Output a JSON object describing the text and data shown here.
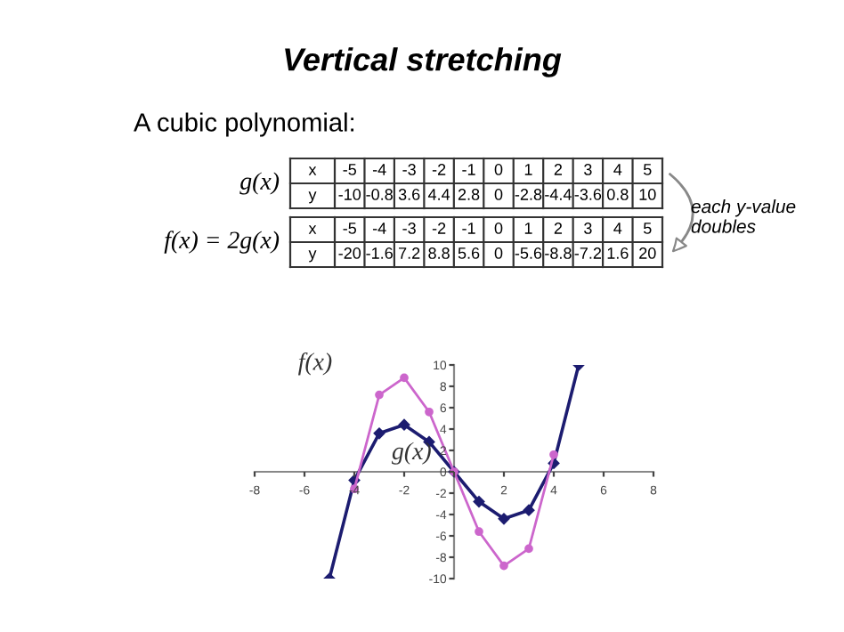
{
  "chart_data": {
    "type": "line",
    "title": "Vertical stretching",
    "subtitle": "A cubic polynomial:",
    "annotations": [
      "each y-value doubles",
      "f(x) = 2g(x)",
      "x",
      "-5",
      "-4",
      "-3",
      "-2",
      "-1",
      "0",
      "1",
      "2",
      "3",
      "4",
      "5",
      "y",
      "-10",
      "-0.8",
      "3.6",
      "4.4",
      "2.8",
      "0",
      "-2.8",
      "-4.4",
      "-3.6",
      "0.8",
      "10",
      "x",
      "-5",
      "-4",
      "-3",
      "-2",
      "-1",
      "0",
      "1",
      "2",
      "3",
      "4",
      "5",
      "y",
      "-20",
      "-1.6",
      "7.2",
      "8.8",
      "5.6",
      "0",
      "-5.6",
      "-8.8",
      "-7.2",
      "1.6",
      "20"
    ],
    "x": [
      -5,
      -4,
      -3,
      -2,
      -1,
      0,
      1,
      2,
      3,
      4,
      5
    ],
    "series": [
      {
        "name": "g(x)",
        "color": "#1c1c70",
        "marker": "diamond",
        "values": [
          -10,
          -0.8,
          3.6,
          4.4,
          2.8,
          0,
          -2.8,
          -4.4,
          -3.6,
          0.8,
          10
        ]
      },
      {
        "name": "f(x)",
        "color": "#cc66cc",
        "marker": "circle",
        "values": [
          null,
          -1.6,
          7.2,
          8.8,
          5.6,
          0,
          -5.6,
          -8.8,
          -7.2,
          1.6,
          null
        ]
      }
    ],
    "xlim": [
      -8,
      8
    ],
    "ylim": [
      -10,
      10
    ],
    "xticks": [
      -8,
      -6,
      -4,
      -2,
      {
        "value": 0,
        "label": null
      },
      2,
      4,
      6,
      8
    ],
    "yticks": [
      -10,
      -8,
      -6,
      -4,
      -2,
      0,
      2,
      4,
      6,
      8,
      10
    ],
    "grid": false,
    "legend": false,
    "line_style": "solid"
  }
}
